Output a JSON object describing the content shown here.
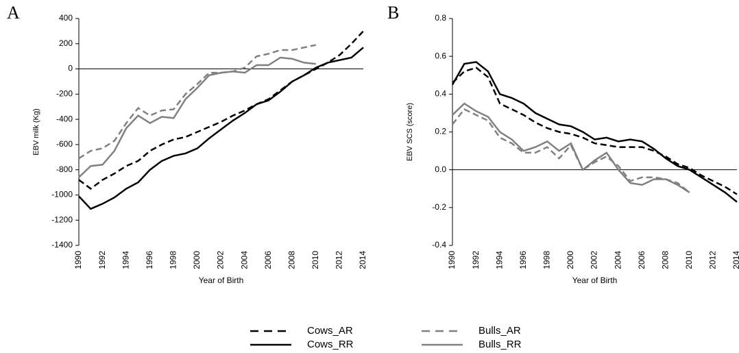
{
  "chart_data": [
    {
      "type": "line",
      "label": "A",
      "xlabel": "Year of Birth",
      "ylabel": "EBV milk (Kg)",
      "x": [
        1990,
        1991,
        1992,
        1993,
        1994,
        1995,
        1996,
        1997,
        1998,
        1999,
        2000,
        2001,
        2002,
        2003,
        2004,
        2005,
        2006,
        2007,
        2008,
        2009,
        2010,
        2011,
        2012,
        2013,
        2014
      ],
      "xlim": [
        1990,
        2014
      ],
      "xticks": [
        1990,
        1992,
        1994,
        1996,
        1998,
        2000,
        2002,
        2004,
        2006,
        2008,
        2010,
        2012,
        2014
      ],
      "ylim": [
        -1400,
        400
      ],
      "yticks": [
        -1400,
        -1200,
        -1000,
        -800,
        -600,
        -400,
        -200,
        0,
        200,
        400
      ],
      "series": [
        {
          "name": "Cows_AR",
          "color": "#000000",
          "dashed": true,
          "values": [
            -880,
            -950,
            -880,
            -830,
            -770,
            -730,
            -650,
            -600,
            -560,
            -540,
            -500,
            -460,
            -420,
            -370,
            -330,
            -280,
            -240,
            -170,
            -100,
            -50,
            0,
            50,
            110,
            200,
            300
          ]
        },
        {
          "name": "Cows_RR",
          "color": "#000000",
          "dashed": false,
          "values": [
            -1010,
            -1110,
            -1070,
            -1020,
            -950,
            -900,
            -800,
            -730,
            -690,
            -670,
            -630,
            -550,
            -480,
            -410,
            -350,
            -280,
            -250,
            -180,
            -100,
            -50,
            10,
            50,
            70,
            90,
            170
          ]
        },
        {
          "name": "Bulls_AR",
          "color": "#808080",
          "dashed": true,
          "values": [
            -710,
            -650,
            -630,
            -570,
            -430,
            -310,
            -370,
            -330,
            -320,
            -200,
            -120,
            -30,
            -30,
            -20,
            10,
            100,
            120,
            150,
            150,
            170,
            190,
            null,
            null,
            null,
            null
          ]
        },
        {
          "name": "Bulls_RR",
          "color": "#808080",
          "dashed": false,
          "values": [
            -860,
            -770,
            -760,
            -650,
            -470,
            -370,
            -430,
            -380,
            -390,
            -240,
            -150,
            -50,
            -30,
            -20,
            -30,
            30,
            30,
            90,
            80,
            50,
            40,
            null,
            null,
            null,
            null
          ]
        }
      ]
    },
    {
      "type": "line",
      "label": "B",
      "xlabel": "Year of Birth",
      "ylabel": "EBV SCS (score)",
      "x": [
        1990,
        1991,
        1992,
        1993,
        1994,
        1995,
        1996,
        1997,
        1998,
        1999,
        2000,
        2001,
        2002,
        2003,
        2004,
        2005,
        2006,
        2007,
        2008,
        2009,
        2010,
        2011,
        2012,
        2013,
        2014
      ],
      "xlim": [
        1990,
        2014
      ],
      "xticks": [
        1990,
        1992,
        1994,
        1996,
        1998,
        2000,
        2002,
        2004,
        2006,
        2008,
        2010,
        2012,
        2014
      ],
      "ylim": [
        -0.4,
        0.8
      ],
      "yticks": [
        -0.4,
        -0.2,
        {
          "value": 0,
          "label": "0.0"
        },
        0.2,
        0.4,
        0.6,
        0.8
      ],
      "series": [
        {
          "color": "#000000",
          "dashed": true,
          "values": [
            0.46,
            0.52,
            0.54,
            0.49,
            0.35,
            0.32,
            0.29,
            0.25,
            0.22,
            0.2,
            0.19,
            0.17,
            0.14,
            0.13,
            0.12,
            0.12,
            0.12,
            0.1,
            0.07,
            0.03,
            0.01,
            -0.03,
            -0.06,
            -0.09,
            -0.13
          ]
        },
        {
          "color": "#000000",
          "dashed": false,
          "values": [
            0.45,
            0.56,
            0.57,
            0.52,
            0.4,
            0.38,
            0.35,
            0.3,
            0.27,
            0.24,
            0.23,
            0.2,
            0.16,
            0.17,
            0.15,
            0.16,
            0.15,
            0.11,
            0.06,
            0.02,
            0.0,
            -0.04,
            -0.08,
            -0.12,
            -0.17
          ]
        },
        {
          "color": "#808080",
          "dashed": true,
          "values": [
            0.24,
            0.32,
            0.29,
            0.26,
            0.17,
            0.14,
            0.09,
            0.09,
            0.12,
            0.06,
            0.13,
            0.0,
            0.04,
            0.07,
            0.02,
            -0.06,
            -0.04,
            -0.04,
            -0.05,
            -0.07,
            -0.12,
            null,
            null,
            null,
            null
          ]
        },
        {
          "color": "#808080",
          "dashed": false,
          "values": [
            0.29,
            0.35,
            0.31,
            0.28,
            0.2,
            0.16,
            0.1,
            0.12,
            0.15,
            0.1,
            0.14,
            0.0,
            0.05,
            0.09,
            0.0,
            -0.07,
            -0.08,
            -0.05,
            -0.05,
            -0.08,
            -0.12,
            null,
            null,
            null,
            null
          ]
        }
      ]
    }
  ]
}
